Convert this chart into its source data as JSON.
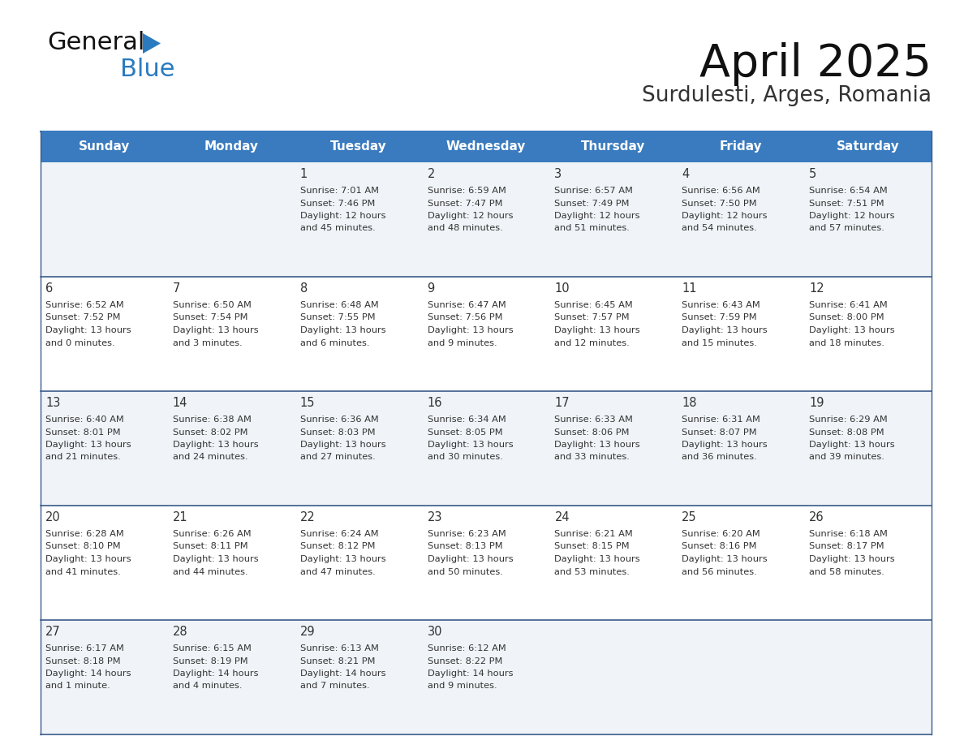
{
  "title": "April 2025",
  "subtitle": "Surdulesti, Arges, Romania",
  "header_bg": "#3a7bbf",
  "header_text": "#ffffff",
  "cell_bg_odd": "#f0f4f8",
  "cell_bg_even": "#ffffff",
  "text_color": "#333333",
  "line_color": "#3a5a8a",
  "day_headers": [
    "Sunday",
    "Monday",
    "Tuesday",
    "Wednesday",
    "Thursday",
    "Friday",
    "Saturday"
  ],
  "weeks": [
    [
      {
        "day": "",
        "info": ""
      },
      {
        "day": "",
        "info": ""
      },
      {
        "day": "1",
        "info": "Sunrise: 7:01 AM\nSunset: 7:46 PM\nDaylight: 12 hours\nand 45 minutes."
      },
      {
        "day": "2",
        "info": "Sunrise: 6:59 AM\nSunset: 7:47 PM\nDaylight: 12 hours\nand 48 minutes."
      },
      {
        "day": "3",
        "info": "Sunrise: 6:57 AM\nSunset: 7:49 PM\nDaylight: 12 hours\nand 51 minutes."
      },
      {
        "day": "4",
        "info": "Sunrise: 6:56 AM\nSunset: 7:50 PM\nDaylight: 12 hours\nand 54 minutes."
      },
      {
        "day": "5",
        "info": "Sunrise: 6:54 AM\nSunset: 7:51 PM\nDaylight: 12 hours\nand 57 minutes."
      }
    ],
    [
      {
        "day": "6",
        "info": "Sunrise: 6:52 AM\nSunset: 7:52 PM\nDaylight: 13 hours\nand 0 minutes."
      },
      {
        "day": "7",
        "info": "Sunrise: 6:50 AM\nSunset: 7:54 PM\nDaylight: 13 hours\nand 3 minutes."
      },
      {
        "day": "8",
        "info": "Sunrise: 6:48 AM\nSunset: 7:55 PM\nDaylight: 13 hours\nand 6 minutes."
      },
      {
        "day": "9",
        "info": "Sunrise: 6:47 AM\nSunset: 7:56 PM\nDaylight: 13 hours\nand 9 minutes."
      },
      {
        "day": "10",
        "info": "Sunrise: 6:45 AM\nSunset: 7:57 PM\nDaylight: 13 hours\nand 12 minutes."
      },
      {
        "day": "11",
        "info": "Sunrise: 6:43 AM\nSunset: 7:59 PM\nDaylight: 13 hours\nand 15 minutes."
      },
      {
        "day": "12",
        "info": "Sunrise: 6:41 AM\nSunset: 8:00 PM\nDaylight: 13 hours\nand 18 minutes."
      }
    ],
    [
      {
        "day": "13",
        "info": "Sunrise: 6:40 AM\nSunset: 8:01 PM\nDaylight: 13 hours\nand 21 minutes."
      },
      {
        "day": "14",
        "info": "Sunrise: 6:38 AM\nSunset: 8:02 PM\nDaylight: 13 hours\nand 24 minutes."
      },
      {
        "day": "15",
        "info": "Sunrise: 6:36 AM\nSunset: 8:03 PM\nDaylight: 13 hours\nand 27 minutes."
      },
      {
        "day": "16",
        "info": "Sunrise: 6:34 AM\nSunset: 8:05 PM\nDaylight: 13 hours\nand 30 minutes."
      },
      {
        "day": "17",
        "info": "Sunrise: 6:33 AM\nSunset: 8:06 PM\nDaylight: 13 hours\nand 33 minutes."
      },
      {
        "day": "18",
        "info": "Sunrise: 6:31 AM\nSunset: 8:07 PM\nDaylight: 13 hours\nand 36 minutes."
      },
      {
        "day": "19",
        "info": "Sunrise: 6:29 AM\nSunset: 8:08 PM\nDaylight: 13 hours\nand 39 minutes."
      }
    ],
    [
      {
        "day": "20",
        "info": "Sunrise: 6:28 AM\nSunset: 8:10 PM\nDaylight: 13 hours\nand 41 minutes."
      },
      {
        "day": "21",
        "info": "Sunrise: 6:26 AM\nSunset: 8:11 PM\nDaylight: 13 hours\nand 44 minutes."
      },
      {
        "day": "22",
        "info": "Sunrise: 6:24 AM\nSunset: 8:12 PM\nDaylight: 13 hours\nand 47 minutes."
      },
      {
        "day": "23",
        "info": "Sunrise: 6:23 AM\nSunset: 8:13 PM\nDaylight: 13 hours\nand 50 minutes."
      },
      {
        "day": "24",
        "info": "Sunrise: 6:21 AM\nSunset: 8:15 PM\nDaylight: 13 hours\nand 53 minutes."
      },
      {
        "day": "25",
        "info": "Sunrise: 6:20 AM\nSunset: 8:16 PM\nDaylight: 13 hours\nand 56 minutes."
      },
      {
        "day": "26",
        "info": "Sunrise: 6:18 AM\nSunset: 8:17 PM\nDaylight: 13 hours\nand 58 minutes."
      }
    ],
    [
      {
        "day": "27",
        "info": "Sunrise: 6:17 AM\nSunset: 8:18 PM\nDaylight: 14 hours\nand 1 minute."
      },
      {
        "day": "28",
        "info": "Sunrise: 6:15 AM\nSunset: 8:19 PM\nDaylight: 14 hours\nand 4 minutes."
      },
      {
        "day": "29",
        "info": "Sunrise: 6:13 AM\nSunset: 8:21 PM\nDaylight: 14 hours\nand 7 minutes."
      },
      {
        "day": "30",
        "info": "Sunrise: 6:12 AM\nSunset: 8:22 PM\nDaylight: 14 hours\nand 9 minutes."
      },
      {
        "day": "",
        "info": ""
      },
      {
        "day": "",
        "info": ""
      },
      {
        "day": "",
        "info": ""
      }
    ]
  ],
  "logo_general_color": "#111111",
  "logo_blue_color": "#2a7abf",
  "logo_triangle_color": "#2a7abf"
}
